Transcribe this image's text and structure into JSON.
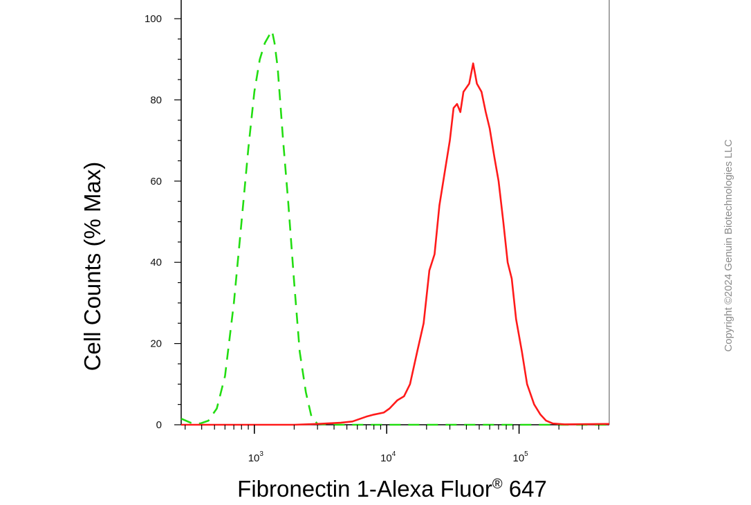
{
  "chart_data": {
    "type": "line",
    "xlabel": "Fibronectin 1-Alexa Fluor",
    "xlabel_superscript": "®",
    "xlabel_suffix": " 647",
    "ylabel": "Cell Counts (% Max)",
    "xscale": "log",
    "xlim": [
      280,
      480000
    ],
    "ylim": [
      0,
      100
    ],
    "y_ticks": [
      0,
      20,
      40,
      60,
      80,
      100
    ],
    "x_ticks": [
      {
        "value": 1000,
        "base": "10",
        "exp": "3"
      },
      {
        "value": 10000,
        "base": "10",
        "exp": "4"
      },
      {
        "value": 100000,
        "base": "10",
        "exp": "5"
      }
    ],
    "grid": false,
    "series": [
      {
        "color": "#22dd11",
        "style": "dashed",
        "points": [
          [
            280,
            1.5
          ],
          [
            330,
            0.5
          ],
          [
            390,
            0.3
          ],
          [
            450,
            1
          ],
          [
            520,
            4
          ],
          [
            600,
            12
          ],
          [
            700,
            30
          ],
          [
            800,
            50
          ],
          [
            900,
            68
          ],
          [
            1000,
            82
          ],
          [
            1100,
            90
          ],
          [
            1200,
            94
          ],
          [
            1300,
            96
          ],
          [
            1360,
            97
          ],
          [
            1420,
            94
          ],
          [
            1500,
            88
          ],
          [
            1650,
            70
          ],
          [
            1800,
            55
          ],
          [
            2000,
            35
          ],
          [
            2200,
            18
          ],
          [
            2450,
            8
          ],
          [
            2700,
            2
          ],
          [
            3000,
            0.2
          ],
          [
            4000,
            0
          ],
          [
            10000,
            0
          ],
          [
            50000,
            0
          ],
          [
            200000,
            0
          ],
          [
            480000,
            0
          ]
        ]
      },
      {
        "color": "#ff1a1a",
        "style": "solid",
        "points": [
          [
            280,
            0
          ],
          [
            2000,
            0
          ],
          [
            3000,
            0.2
          ],
          [
            4500,
            0.5
          ],
          [
            5500,
            0.8
          ],
          [
            7000,
            2
          ],
          [
            8000,
            2.5
          ],
          [
            9500,
            3
          ],
          [
            10500,
            4
          ],
          [
            12000,
            6
          ],
          [
            13500,
            7
          ],
          [
            15000,
            10
          ],
          [
            17000,
            18
          ],
          [
            19000,
            25
          ],
          [
            21000,
            38
          ],
          [
            23000,
            42
          ],
          [
            25000,
            54
          ],
          [
            28000,
            64
          ],
          [
            30000,
            70
          ],
          [
            32000,
            78
          ],
          [
            34000,
            79
          ],
          [
            36000,
            77
          ],
          [
            38000,
            82
          ],
          [
            40000,
            83
          ],
          [
            42000,
            84
          ],
          [
            45000,
            89
          ],
          [
            48000,
            84
          ],
          [
            52000,
            82
          ],
          [
            56000,
            77
          ],
          [
            60000,
            73
          ],
          [
            65000,
            66
          ],
          [
            70000,
            60
          ],
          [
            76000,
            50
          ],
          [
            82000,
            40
          ],
          [
            88000,
            36
          ],
          [
            95000,
            26
          ],
          [
            105000,
            18
          ],
          [
            115000,
            10
          ],
          [
            130000,
            5
          ],
          [
            145000,
            2.5
          ],
          [
            160000,
            1
          ],
          [
            180000,
            0.3
          ],
          [
            220000,
            0.1
          ],
          [
            480000,
            0.2
          ]
        ]
      }
    ]
  },
  "copyright": "Copyright ©2024 Genuin Biotechnologies LLC"
}
